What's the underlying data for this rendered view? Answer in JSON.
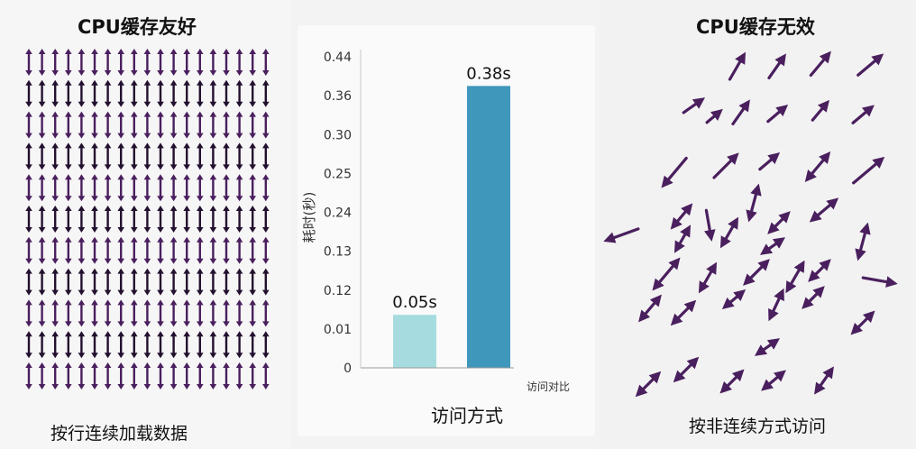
{
  "left": {
    "title": "CPU缓存友好",
    "caption": "按行连续加载数据"
  },
  "right": {
    "title": "CPU缓存无效",
    "caption": "按非连续方式访问"
  },
  "arrow_color": "#4a1f5e",
  "arrow_color_dark": "#23102f",
  "chart_data": {
    "type": "bar",
    "categories": [
      "",
      ""
    ],
    "values": [
      0.05,
      0.38
    ],
    "data_labels": [
      "0.05s",
      "0.38s"
    ],
    "bar_colors": [
      "#a6dcdf",
      "#3f97bb"
    ],
    "ylabel": "耗时(秒)",
    "xlabel": "访问方式",
    "x_annotation": "访问对比",
    "yticks": [
      "0",
      "0.01",
      "0.12",
      "0.13",
      "0.24",
      "0.25",
      "0.30",
      "0.36",
      "0.44"
    ],
    "ylim": [
      0,
      0.44
    ],
    "grid": false,
    "legend": "none"
  }
}
